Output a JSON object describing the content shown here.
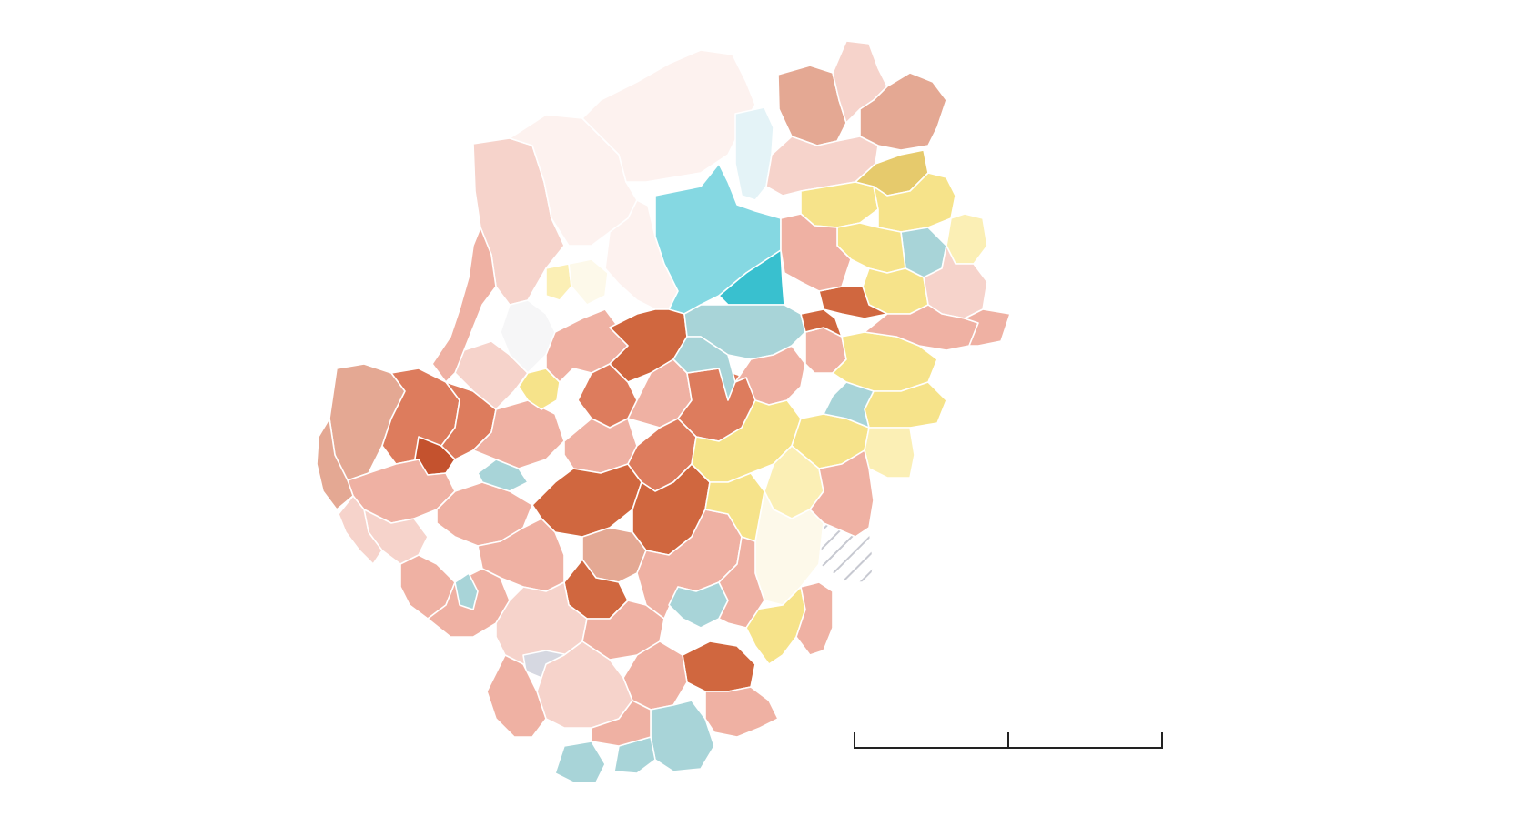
{
  "map": {
    "colors": {
      "pink-very-light": "#fdf2ef",
      "pink-light": "#f6d3cb",
      "salmon": "#efb1a3",
      "salmon-mid": "#e4a893",
      "orange": "#dd7c5d",
      "orange-dark": "#d0673f",
      "red-dark": "#c4522e",
      "yellow": "#f6e38a",
      "yellow-light": "#fbefb5",
      "yellow-dark": "#e6ca6c",
      "cream": "#fdf9ea",
      "teal": "#a8d4d8",
      "cyan": "#85d8e2",
      "cyan-strong": "#39c0cf",
      "ice": "#e4f3f7",
      "gray-light": "#f6f6f7",
      "gray-lav": "#d6d8e1",
      "hatch": "#c7c9d1"
    }
  },
  "scale_bar": {
    "labels": []
  }
}
